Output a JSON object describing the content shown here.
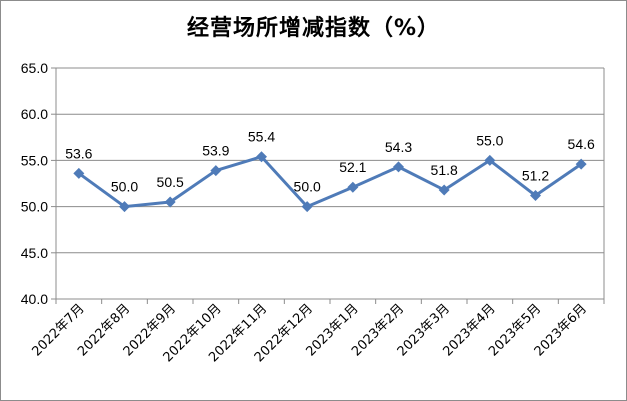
{
  "chart_data": {
    "type": "line",
    "title": "经营场所增减指数（%）",
    "categories": [
      "2022年7月",
      "2022年8月",
      "2022年9月",
      "2022年10月",
      "2022年11月",
      "2022年12月",
      "2023年1月",
      "2023年2月",
      "2023年3月",
      "2023年4月",
      "2023年5月",
      "2023年6月"
    ],
    "series": [
      {
        "values": [
          53.6,
          50.0,
          50.5,
          53.9,
          55.4,
          50.0,
          52.1,
          54.3,
          51.8,
          55.0,
          51.2,
          54.6
        ]
      }
    ],
    "data_labels": [
      "53.6",
      "50.0",
      "50.5",
      "53.9",
      "55.4",
      "50.0",
      "52.1",
      "54.3",
      "51.8",
      "55.0",
      "51.2",
      "54.6"
    ],
    "y_ticks": [
      "40.0",
      "45.0",
      "50.0",
      "55.0",
      "60.0",
      "65.0"
    ],
    "ylim": [
      40,
      65
    ],
    "grid": true,
    "legend": "none",
    "colors": {
      "line": "#4f7bb8",
      "grid": "#8c8c8c",
      "axis": "#8c8c8c"
    }
  }
}
